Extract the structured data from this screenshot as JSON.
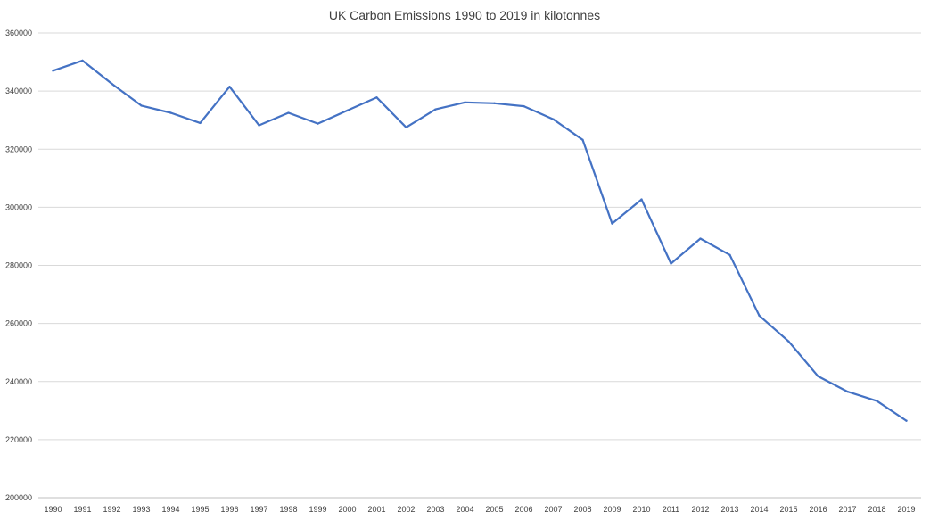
{
  "chart_data": {
    "type": "line",
    "title": "UK Carbon Emissions 1990 to 2019 in kilotonnes",
    "xlabel": "",
    "ylabel": "",
    "ylim": [
      200000,
      360000
    ],
    "yticks": [
      200000,
      220000,
      240000,
      260000,
      280000,
      300000,
      320000,
      340000,
      360000
    ],
    "grid": true,
    "legend": "none",
    "categories": [
      "1990",
      "1991",
      "1992",
      "1993",
      "1994",
      "1995",
      "1996",
      "1997",
      "1998",
      "1999",
      "2000",
      "2001",
      "2002",
      "2003",
      "2004",
      "2005",
      "2006",
      "2007",
      "2008",
      "2009",
      "2010",
      "2011",
      "2012",
      "2013",
      "2014",
      "2015",
      "2016",
      "2017",
      "2018",
      "2019"
    ],
    "series": [
      {
        "color": "#4472c4",
        "values": [
          347000,
          350500,
          342500,
          335000,
          332500,
          329000,
          341500,
          328200,
          332500,
          328800,
          333300,
          337800,
          327500,
          333700,
          336100,
          335800,
          334800,
          330300,
          323200,
          294400,
          302700,
          280600,
          289200,
          283600,
          262700,
          253800,
          241800,
          236500,
          233300,
          226500
        ]
      }
    ]
  }
}
